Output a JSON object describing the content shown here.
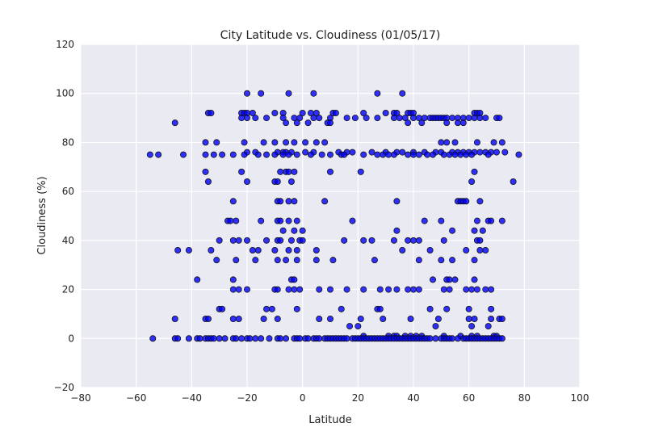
{
  "chart_data": {
    "type": "scatter",
    "title": "City Latitude vs. Cloudiness (01/05/17)",
    "xlabel": "Latitude",
    "ylabel": "Cloudiness (%)",
    "xlim": [
      -80,
      100
    ],
    "ylim": [
      -20,
      120
    ],
    "xticks": [
      -80,
      -60,
      -40,
      -20,
      0,
      20,
      40,
      60,
      80,
      100
    ],
    "yticks": [
      -20,
      0,
      20,
      40,
      60,
      80,
      100,
      120
    ],
    "grid": true,
    "background_color": "#EAEAF2",
    "marker_color": "#0000FF",
    "points_by_y": [
      {
        "y": 100,
        "x": [
          -20,
          -15,
          -5,
          4,
          27,
          36
        ]
      },
      {
        "y": 92,
        "x": [
          -34,
          -33,
          -22,
          -21,
          -20,
          -18,
          -10,
          -7,
          0,
          3,
          5,
          11,
          12,
          22,
          30,
          33,
          34,
          38,
          39,
          40,
          62,
          63,
          64
        ]
      },
      {
        "y": 90,
        "x": [
          -22,
          -20,
          -17,
          -13,
          -7,
          -3,
          -1,
          4,
          6,
          10,
          16,
          19,
          23,
          27,
          33,
          35,
          37,
          40,
          42,
          44,
          46,
          47,
          48,
          49,
          50,
          51,
          52,
          54,
          56,
          58,
          60,
          62,
          64,
          66,
          70,
          71
        ]
      },
      {
        "y": 88,
        "x": [
          -46,
          -6,
          -2,
          2,
          9,
          10,
          38,
          43,
          52,
          56,
          58
        ]
      },
      {
        "y": 80,
        "x": [
          -35,
          -31,
          -21,
          -14,
          -10,
          -6,
          -3,
          1,
          5,
          8,
          50,
          52,
          55,
          63,
          69,
          72
        ]
      },
      {
        "y": 76,
        "x": [
          -20,
          -17,
          -9,
          -7,
          -6,
          -4,
          1,
          4,
          13,
          16,
          18,
          25,
          30,
          34,
          36,
          40,
          44,
          48,
          50,
          54,
          56,
          58,
          60,
          62,
          64,
          66,
          68,
          70,
          73
        ]
      },
      {
        "y": 75,
        "x": [
          -55,
          -52,
          -43,
          -35,
          -32,
          -29,
          -25,
          -21,
          -16,
          -13,
          -10,
          -7,
          -5,
          -2,
          3,
          7,
          10,
          14,
          15,
          22,
          27,
          29,
          31,
          33,
          38,
          40,
          42,
          45,
          47,
          51,
          53,
          55,
          57,
          59,
          61,
          67,
          78
        ]
      },
      {
        "y": 68,
        "x": [
          -35,
          -22,
          -8,
          -6,
          -5,
          -3,
          10,
          21,
          62
        ]
      },
      {
        "y": 64,
        "x": [
          -34,
          -20,
          -10,
          -9,
          -4,
          61,
          76
        ]
      },
      {
        "y": 56,
        "x": [
          -25,
          -9,
          -8,
          -5,
          -3,
          8,
          34,
          56,
          57,
          58,
          59,
          64
        ]
      },
      {
        "y": 48,
        "x": [
          -27,
          -26,
          -24,
          -15,
          -9,
          -8,
          -5,
          -2,
          18,
          44,
          50,
          63,
          67,
          68,
          72
        ]
      },
      {
        "y": 44,
        "x": [
          -7,
          -3,
          0,
          34,
          54,
          62,
          65
        ]
      },
      {
        "y": 40,
        "x": [
          -30,
          -25,
          -23,
          -20,
          -13,
          -9,
          -8,
          -4,
          -1,
          0,
          15,
          22,
          25,
          33,
          38,
          40,
          42,
          51,
          63,
          64
        ]
      },
      {
        "y": 36,
        "x": [
          -45,
          -41,
          -33,
          -18,
          -16,
          -10,
          -5,
          -2,
          5,
          36,
          46,
          59,
          64,
          66
        ]
      },
      {
        "y": 32,
        "x": [
          -31,
          -24,
          -17,
          -9,
          -6,
          -2,
          5,
          11,
          26,
          42,
          50,
          54,
          62
        ]
      },
      {
        "y": 24,
        "x": [
          -38,
          -25,
          -4,
          -3,
          47,
          52,
          53,
          55,
          62
        ]
      },
      {
        "y": 20,
        "x": [
          -25,
          -23,
          -20,
          -10,
          -9,
          -5,
          -3,
          -1,
          6,
          10,
          16,
          22,
          28,
          31,
          34,
          38,
          40,
          42,
          51,
          53,
          59,
          61,
          63,
          66,
          68
        ]
      },
      {
        "y": 12,
        "x": [
          -30,
          -29,
          -13,
          -11,
          -2,
          14,
          27,
          28,
          46,
          52,
          60,
          68
        ]
      },
      {
        "y": 8,
        "x": [
          -46,
          -35,
          -34,
          -25,
          -23,
          -14,
          -9,
          6,
          10,
          21,
          29,
          39,
          49,
          60,
          62,
          68,
          71,
          72
        ]
      },
      {
        "y": 5,
        "x": [
          17,
          20,
          48,
          61,
          67
        ]
      },
      {
        "y": 1,
        "x": [
          22,
          31,
          33,
          34,
          37,
          39,
          41,
          43,
          51,
          57,
          61,
          63,
          69,
          70
        ]
      },
      {
        "y": 0,
        "x": [
          -54,
          -46,
          -45,
          -41,
          -38,
          -37,
          -35,
          -34,
          -33,
          -32,
          -30,
          -28,
          -25,
          -24,
          -22,
          -20,
          -19,
          -17,
          -15,
          -12,
          -9,
          -8,
          -6,
          -3,
          -2,
          -1,
          1,
          2,
          4,
          5,
          6,
          8,
          9,
          10,
          11,
          12,
          13,
          14,
          15,
          16,
          18,
          19,
          20,
          21,
          22,
          23,
          24,
          25,
          26,
          27,
          28,
          29,
          30,
          31,
          32,
          33,
          34,
          35,
          36,
          37,
          38,
          39,
          40,
          41,
          42,
          43,
          44,
          45,
          46,
          48,
          50,
          51,
          52,
          53,
          54,
          56,
          58,
          59,
          60,
          61,
          62,
          63,
          64,
          65,
          66,
          67,
          68,
          69,
          70,
          71,
          72
        ]
      }
    ]
  }
}
